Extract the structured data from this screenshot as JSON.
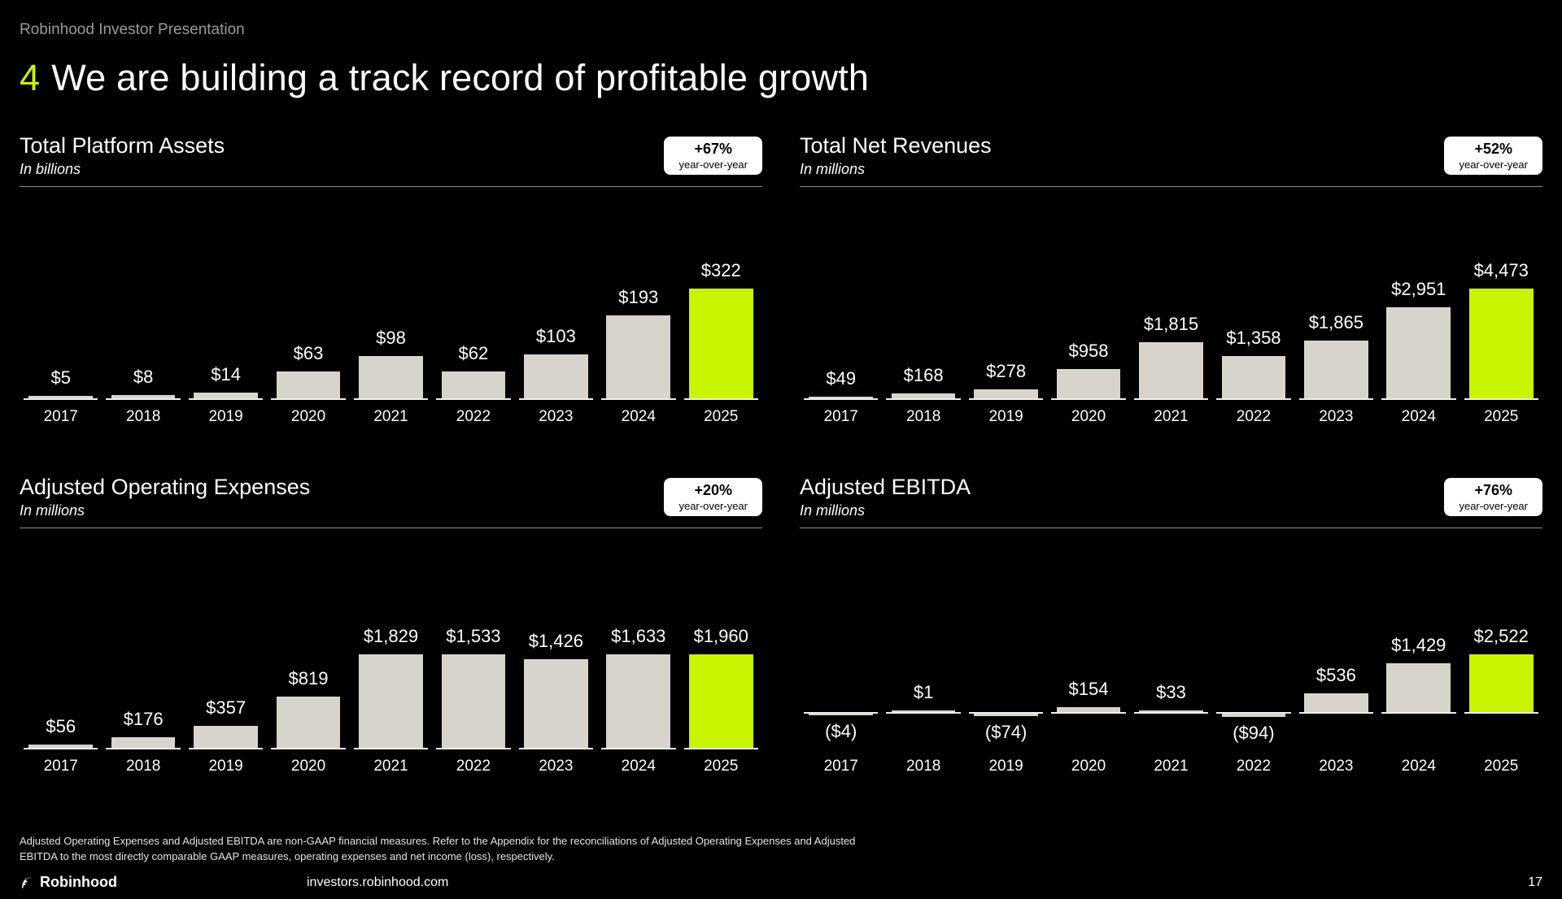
{
  "page": {
    "eyebrow": "Robinhood Investor Presentation",
    "title_number": "4",
    "title": "We are building a track record of profitable growth",
    "footnote": "Adjusted Operating Expenses and Adjusted EBITDA are non-GAAP financial measures. Refer to the Appendix for the reconciliations of Adjusted Operating Expenses and Adjusted EBITDA to the most directly comparable GAAP measures, operating expenses and net income (loss), respectively.",
    "footer": {
      "brand": "Robinhood",
      "url": "investors.robinhood.com",
      "page_number": "17"
    }
  },
  "colors": {
    "background": "#000000",
    "accent": "#c7f500",
    "bar": "#d8d4cc",
    "baseline": "#f0eee9",
    "badge_bg": "#ffffff",
    "badge_text": "#000000"
  },
  "chart_data": [
    {
      "type": "bar",
      "title": "Total Platform Assets",
      "subtitle": "In billions",
      "badge": {
        "pct": "+67%",
        "caption": "year-over-year"
      },
      "categories": [
        "2017",
        "2018",
        "2019",
        "2020",
        "2021",
        "2022",
        "2023",
        "2024",
        "2025"
      ],
      "values": [
        5,
        8,
        14,
        63,
        98,
        62,
        103,
        193,
        322
      ],
      "labels": [
        "$5",
        "$8",
        "$14",
        "$63",
        "$98",
        "$62",
        "$103",
        "$193",
        "$322"
      ],
      "highlight_index": 8,
      "ylim": [
        0,
        322
      ],
      "grid": false,
      "legend": "none"
    },
    {
      "type": "bar",
      "title": "Total Net Revenues",
      "subtitle": "In millions",
      "badge": {
        "pct": "+52%",
        "caption": "year-over-year"
      },
      "categories": [
        "2017",
        "2018",
        "2019",
        "2020",
        "2021",
        "2022",
        "2023",
        "2024",
        "2025"
      ],
      "values": [
        49,
        168,
        278,
        958,
        1815,
        1358,
        1865,
        2951,
        4473
      ],
      "labels": [
        "$49",
        "$168",
        "$278",
        "$958",
        "$1,815",
        "$1,358",
        "$1,865",
        "$2,951",
        "$4,473"
      ],
      "highlight_index": 8,
      "ylim": [
        0,
        4473
      ],
      "grid": false,
      "legend": "none"
    },
    {
      "type": "bar",
      "title": "Adjusted Operating Expenses",
      "subtitle": "In millions",
      "badge": {
        "pct": "+20%",
        "caption": "year-over-year"
      },
      "categories": [
        "2017",
        "2018",
        "2019",
        "2020",
        "2021",
        "2022",
        "2023",
        "2024",
        "2025"
      ],
      "values": [
        56,
        176,
        357,
        819,
        1829,
        1533,
        1426,
        1633,
        1960
      ],
      "labels": [
        "$56",
        "$176",
        "$357",
        "$819",
        "$1,829",
        "$1,533",
        "$1,426",
        "$1,633",
        "$1,960"
      ],
      "highlight_index": 8,
      "ylim": [
        0,
        1960
      ],
      "grid": false,
      "legend": "none"
    },
    {
      "type": "bar",
      "title": "Adjusted EBITDA",
      "subtitle": "In millions",
      "badge": {
        "pct": "+76%",
        "caption": "year-over-year"
      },
      "categories": [
        "2017",
        "2018",
        "2019",
        "2020",
        "2021",
        "2022",
        "2023",
        "2024",
        "2025"
      ],
      "values": [
        -4,
        1,
        -74,
        154,
        33,
        -94,
        536,
        1429,
        2522
      ],
      "labels": [
        "($4)",
        "$1",
        "($74)",
        "$154",
        "$33",
        "($94)",
        "$536",
        "$1,429",
        "$2,522"
      ],
      "highlight_index": 8,
      "ylim": [
        -94,
        2522
      ],
      "grid": false,
      "legend": "none"
    }
  ]
}
